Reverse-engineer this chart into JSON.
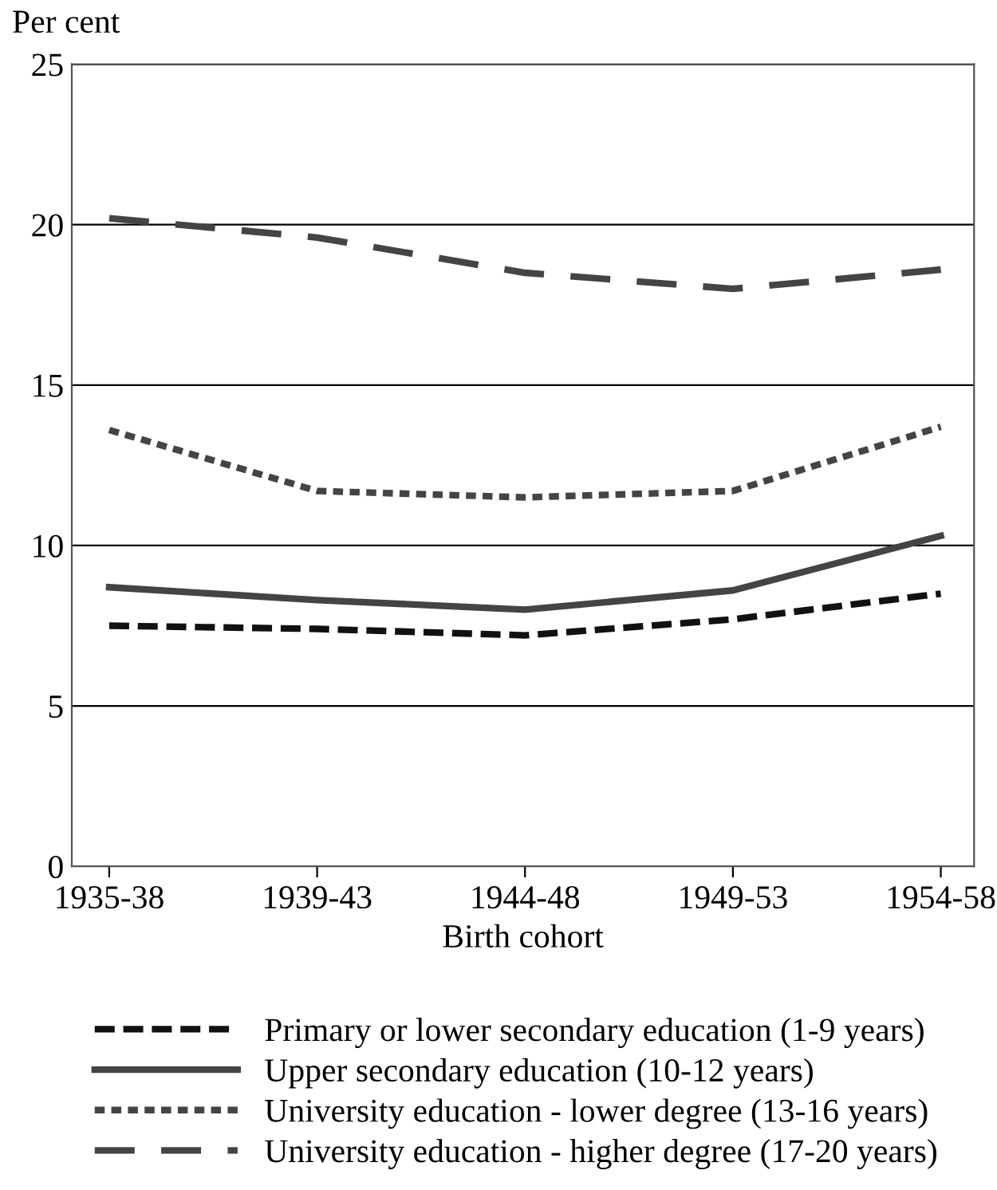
{
  "chart_data": {
    "type": "line",
    "ylabel": "Per cent",
    "xlabel": "Birth cohort",
    "categories": [
      "1935-38",
      "1939-43",
      "1944-48",
      "1949-53",
      "1954-58"
    ],
    "series": [
      {
        "name": "Primary or lower secondary education (1-9 years)",
        "color": "#111111",
        "line_style": "dashed",
        "values": [
          7.5,
          7.4,
          7.2,
          7.7,
          8.5
        ]
      },
      {
        "name": "Upper secondary education (10-12 years)",
        "color": "#444444",
        "line_style": "solid",
        "values": [
          8.7,
          8.3,
          8.0,
          8.6,
          10.3
        ]
      },
      {
        "name": "University education - lower degree (13-16 years)",
        "color": "#444444",
        "line_style": "dotted",
        "values": [
          13.6,
          11.7,
          11.5,
          11.7,
          13.7
        ]
      },
      {
        "name": "University education - higher degree (17-20 years)",
        "color": "#444444",
        "line_style": "long_dashed",
        "values": [
          20.2,
          19.6,
          18.5,
          18.0,
          18.6
        ]
      }
    ],
    "ylim": [
      0,
      25
    ],
    "yticks": [
      0,
      5,
      10,
      15,
      20,
      25
    ],
    "grid": "y",
    "legend": "bottom",
    "marker": "none"
  }
}
